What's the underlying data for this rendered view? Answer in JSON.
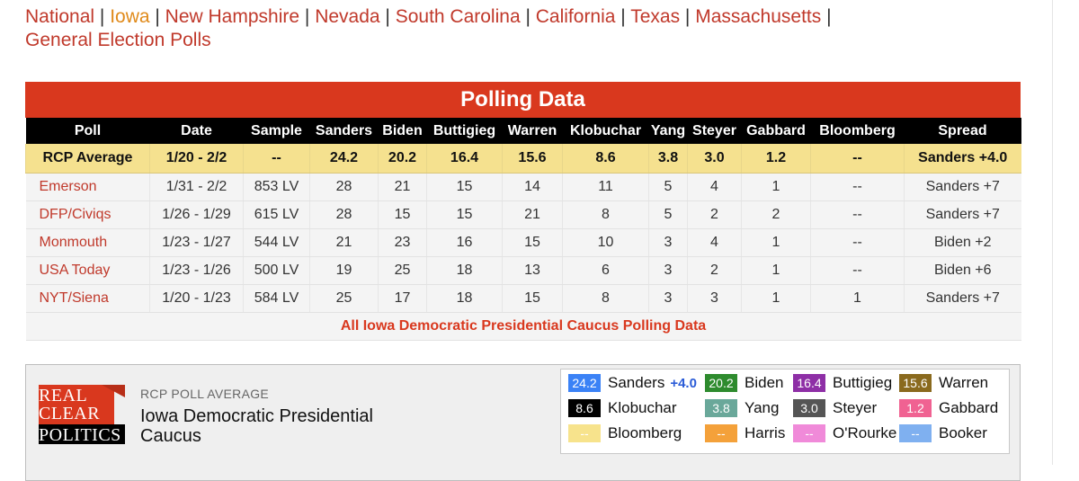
{
  "state_nav": [
    {
      "label": "National",
      "active": false
    },
    {
      "label": "Iowa",
      "active": true
    },
    {
      "label": "New Hampshire",
      "active": false
    },
    {
      "label": "Nevada",
      "active": false
    },
    {
      "label": "South Carolina",
      "active": false
    },
    {
      "label": "California",
      "active": false
    },
    {
      "label": "Texas",
      "active": false
    },
    {
      "label": "Massachusetts",
      "active": false
    },
    {
      "label": "General Election Polls",
      "active": false
    }
  ],
  "polling": {
    "title": "Polling Data",
    "columns": [
      "Poll",
      "Date",
      "Sample",
      "Sanders",
      "Biden",
      "Buttigieg",
      "Warren",
      "Klobuchar",
      "Yang",
      "Steyer",
      "Gabbard",
      "Bloomberg",
      "Spread"
    ],
    "average": [
      "RCP Average",
      "1/20 - 2/2",
      "--",
      "24.2",
      "20.2",
      "16.4",
      "15.6",
      "8.6",
      "3.8",
      "3.0",
      "1.2",
      "--",
      "Sanders +4.0"
    ],
    "rows": [
      [
        "Emerson",
        "1/31 - 2/2",
        "853 LV",
        "28",
        "21",
        "15",
        "14",
        "11",
        "5",
        "4",
        "1",
        "--",
        "Sanders +7"
      ],
      [
        "DFP/Civiqs",
        "1/26 - 1/29",
        "615 LV",
        "28",
        "15",
        "15",
        "21",
        "8",
        "5",
        "2",
        "2",
        "--",
        "Sanders +7"
      ],
      [
        "Monmouth",
        "1/23 - 1/27",
        "544 LV",
        "21",
        "23",
        "16",
        "15",
        "10",
        "3",
        "4",
        "1",
        "--",
        "Biden +2"
      ],
      [
        "USA Today",
        "1/23 - 1/26",
        "500 LV",
        "19",
        "25",
        "18",
        "13",
        "6",
        "3",
        "2",
        "1",
        "--",
        "Biden +6"
      ],
      [
        "NYT/Siena",
        "1/20 - 1/23",
        "584 LV",
        "25",
        "17",
        "18",
        "15",
        "8",
        "3",
        "3",
        "1",
        "1",
        "Sanders +7"
      ]
    ],
    "footer_link": "All Iowa Democratic Presidential Caucus Polling Data"
  },
  "average_box": {
    "logo_lines": [
      "REAL",
      "CLEAR",
      "POLITICS"
    ],
    "label": "RCP POLL AVERAGE",
    "title": "Iowa Democratic Presidential Caucus",
    "legend": [
      {
        "value": "24.2",
        "name": "Sanders",
        "spread": "+4.0",
        "color": "#3b82f6"
      },
      {
        "value": "20.2",
        "name": "Biden",
        "color": "#2e8b2e"
      },
      {
        "value": "16.4",
        "name": "Buttigieg",
        "color": "#8e2fa6"
      },
      {
        "value": "15.6",
        "name": "Warren",
        "color": "#8a6a1e"
      },
      {
        "value": "8.6",
        "name": "Klobuchar",
        "color": "#000000"
      },
      {
        "value": "3.8",
        "name": "Yang",
        "color": "#6aa89a"
      },
      {
        "value": "3.0",
        "name": "Steyer",
        "color": "#555555"
      },
      {
        "value": "1.2",
        "name": "Gabbard",
        "color": "#f06292"
      },
      {
        "value": "--",
        "name": "Bloomberg",
        "color": "#f7e38c"
      },
      {
        "value": "--",
        "name": "Harris",
        "color": "#f4a13a"
      },
      {
        "value": "--",
        "name": "O'Rourke",
        "color": "#f08ad9"
      },
      {
        "value": "--",
        "name": "Booker",
        "color": "#7fb0f0"
      }
    ]
  }
}
